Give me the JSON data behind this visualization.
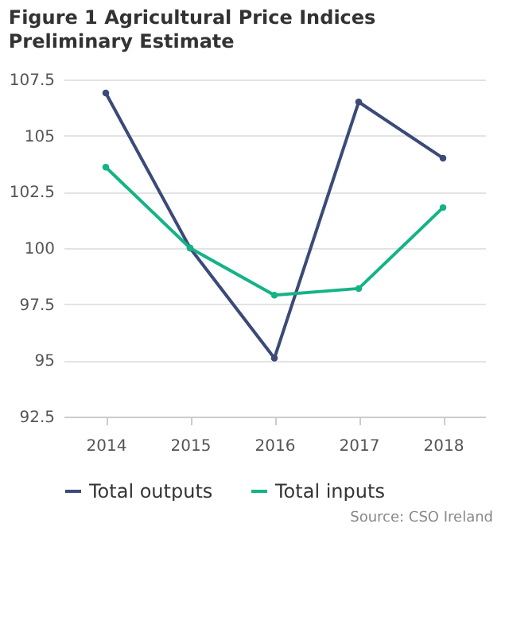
{
  "chart_data": {
    "type": "line",
    "title": "Figure 1 Agricultural Price Indices",
    "subtitle": "Preliminary Estimate",
    "categories": [
      "2014",
      "2015",
      "2016",
      "2017",
      "2018"
    ],
    "series": [
      {
        "name": "Total outputs",
        "color": "#3b4a78",
        "values": [
          106.9,
          100,
          95.1,
          106.5,
          104
        ]
      },
      {
        "name": "Total inputs",
        "color": "#14b386",
        "values": [
          103.6,
          100,
          97.9,
          98.2,
          101.8
        ]
      }
    ],
    "ylim": [
      92.5,
      107.5
    ],
    "yticks": [
      92.5,
      95,
      97.5,
      100,
      102.5,
      105,
      107.5
    ],
    "grid": "y",
    "legend": "bottom",
    "marker": "circle",
    "line_style": "solid",
    "annotations": [
      "Source: CSO Ireland"
    ]
  }
}
